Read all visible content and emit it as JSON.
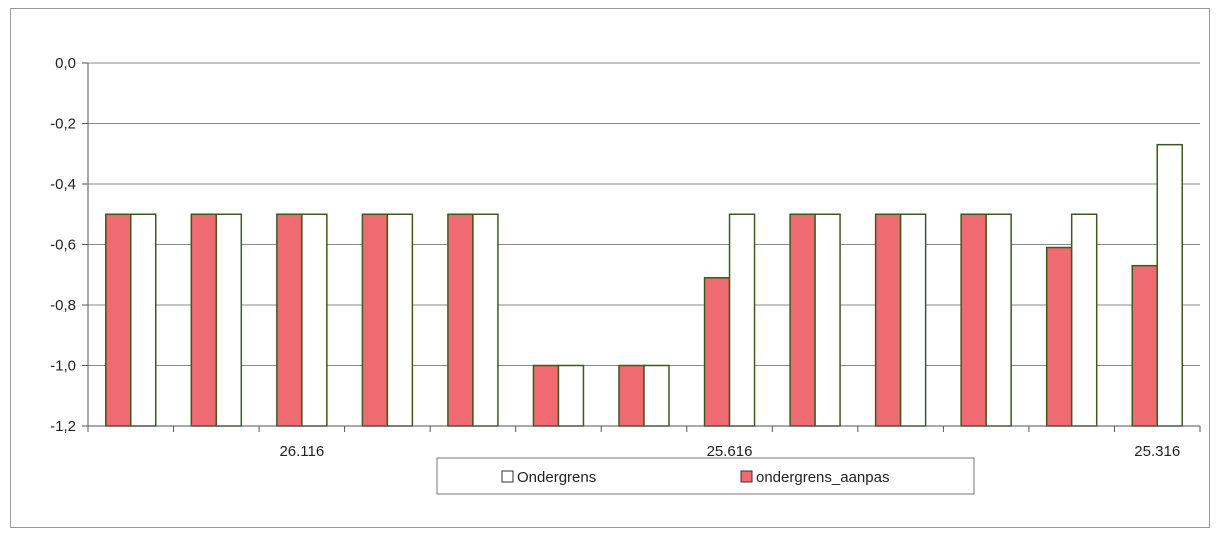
{
  "chart_data": {
    "type": "bar",
    "title": "",
    "xlabel": "",
    "ylabel": "",
    "ylim": [
      -1.2,
      0.0
    ],
    "y_ticks": [
      "0,0",
      "-0,2",
      "-0,4",
      "-0,6",
      "-0,8",
      "-1,0",
      "-1,2"
    ],
    "y_tick_values": [
      0.0,
      -0.2,
      -0.4,
      -0.6,
      -0.8,
      -1.0,
      -1.2
    ],
    "x_tick_labels": [
      {
        "category_index": 2,
        "label": "26.116"
      },
      {
        "category_index": 7,
        "label": "25.616"
      },
      {
        "category_index": 12,
        "label": "25.316"
      }
    ],
    "grid": true,
    "legend_position": "bottom",
    "colors": {
      "ondergrens_aanpas": "#f06a72",
      "Ondergrens": "#ffffff",
      "bar_outline": "#3c5a1e",
      "gridline": "#8a8a8a"
    },
    "series": [
      {
        "name": "ondergrens_aanpas",
        "values": [
          -0.5,
          -0.5,
          -0.5,
          -0.5,
          -0.5,
          -1.0,
          -1.0,
          -0.71,
          -0.5,
          -0.5,
          -0.5,
          -0.61,
          -0.67
        ]
      },
      {
        "name": "Ondergrens",
        "values": [
          -0.5,
          -0.5,
          -0.5,
          -0.5,
          -0.5,
          -1.0,
          -1.0,
          -0.5,
          -0.5,
          -0.5,
          -0.5,
          -0.5,
          -0.27
        ]
      }
    ],
    "legend": [
      {
        "label": "Ondergrens",
        "series": "Ondergrens"
      },
      {
        "label": "ondergrens_aanpas",
        "series": "ondergrens_aanpas"
      }
    ]
  }
}
